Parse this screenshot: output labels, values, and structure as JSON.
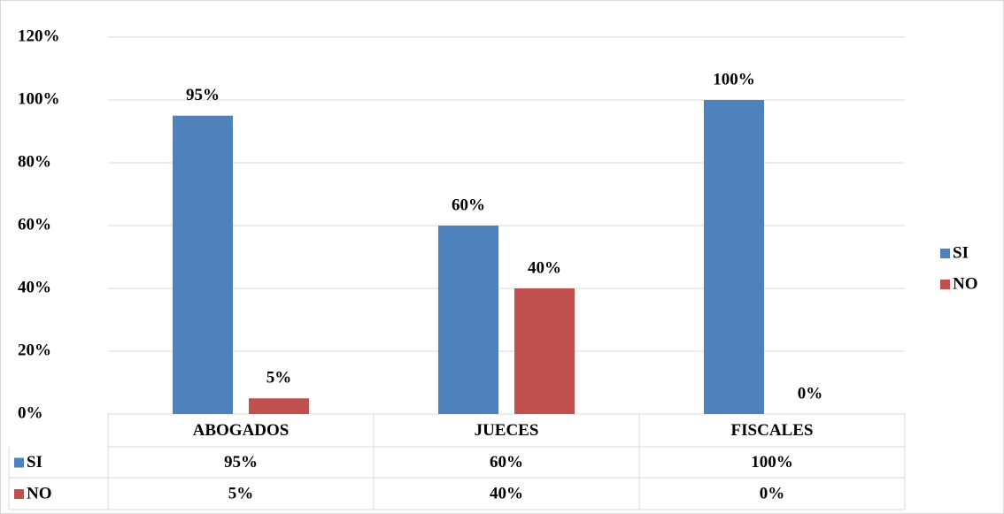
{
  "chart_data": {
    "type": "bar",
    "categories": [
      "ABOGADOS",
      "JUECES",
      "FISCALES"
    ],
    "series": [
      {
        "name": "SI",
        "color": "#4f81bd",
        "values": [
          95,
          60,
          100
        ],
        "value_labels": [
          "95%",
          "60%",
          "100%"
        ]
      },
      {
        "name": "NO",
        "color": "#c0504d",
        "values": [
          5,
          40,
          0
        ],
        "value_labels": [
          "5%",
          "40%",
          "0%"
        ]
      }
    ],
    "ylim": [
      0,
      120
    ],
    "yticks": [
      {
        "value": 0,
        "label": "0%"
      },
      {
        "value": 20,
        "label": "20%"
      },
      {
        "value": 40,
        "label": "40%"
      },
      {
        "value": 60,
        "label": "60%"
      },
      {
        "value": 80,
        "label": "80%"
      },
      {
        "value": 100,
        "label": "100%"
      },
      {
        "value": 120,
        "label": "120%"
      }
    ],
    "grid": true,
    "legend": "right",
    "data_table": true
  }
}
